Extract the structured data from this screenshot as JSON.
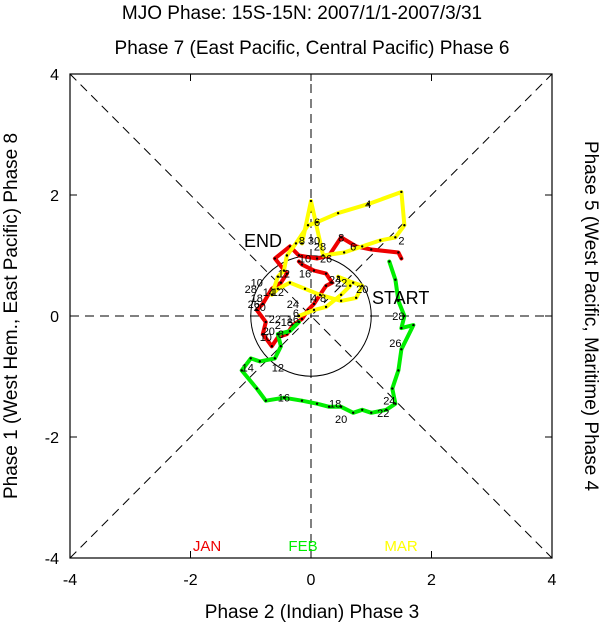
{
  "chart_data": {
    "type": "line",
    "title": "MJO Phase: 15S-15N: 2007/1/1-2007/3/31",
    "top_label": "Phase 7 (East Pacific, Central Pacific) Phase 6",
    "xlabel": "Phase 2 (Indian) Phase 3",
    "left_label": "Phase 1 (West Hem., East Pacific) Phase 8",
    "right_label": "Phase 5 (West Pacific, Maritime) Phase 4",
    "xlim": [
      -4,
      4
    ],
    "ylim": [
      -4,
      4
    ],
    "x_ticks": [
      -4,
      -2,
      0,
      2,
      4
    ],
    "y_ticks": [
      -4,
      -2,
      0,
      2,
      4
    ],
    "x_tick_labels": [
      "-4",
      "-2",
      "0",
      "2",
      "4"
    ],
    "y_tick_labels": [
      "-4",
      "-2",
      "0",
      "2",
      "4"
    ],
    "annotations": {
      "start": "START",
      "end": "END"
    },
    "unit_circle_radius": 1,
    "series": [
      {
        "name": "JAN",
        "color": "#ee0000",
        "points": [
          [
            1.5,
            0.95
          ],
          [
            1.45,
            1.05
          ],
          [
            1.0,
            1.1
          ],
          [
            0.75,
            1.15
          ],
          [
            0.5,
            1.3
          ],
          [
            0.3,
            1.0
          ],
          [
            0.1,
            0.95
          ],
          [
            -0.2,
            1.0
          ],
          [
            -0.35,
            1.15
          ],
          [
            -0.6,
            0.95
          ],
          [
            -0.4,
            0.7
          ],
          [
            -0.5,
            0.55
          ],
          [
            -0.65,
            0.45
          ],
          [
            -0.8,
            0.2
          ],
          [
            -0.9,
            0.1
          ],
          [
            -0.75,
            -0.1
          ],
          [
            -0.8,
            -0.3
          ],
          [
            -0.65,
            -0.5
          ],
          [
            -0.55,
            -0.35
          ],
          [
            -0.4,
            -0.3
          ],
          [
            -0.3,
            -0.15
          ],
          [
            -0.15,
            -0.05
          ],
          [
            -0.05,
            0.1
          ],
          [
            0.05,
            0.2
          ],
          [
            0.15,
            0.35
          ],
          [
            0.25,
            0.5
          ],
          [
            0.35,
            0.55
          ],
          [
            0.25,
            0.7
          ],
          [
            0.05,
            0.75
          ],
          [
            -0.15,
            0.85
          ],
          [
            -0.2,
            0.9
          ]
        ]
      },
      {
        "name": "FEB",
        "color": "#00ee00",
        "points": [
          [
            1.3,
            0.9
          ],
          [
            1.4,
            0.6
          ],
          [
            1.45,
            0.25
          ],
          [
            1.55,
            0.0
          ],
          [
            1.5,
            -0.2
          ],
          [
            1.7,
            -0.15
          ],
          [
            1.5,
            -0.55
          ],
          [
            1.45,
            -0.9
          ],
          [
            1.35,
            -1.2
          ],
          [
            1.4,
            -1.45
          ],
          [
            1.25,
            -1.55
          ],
          [
            1.0,
            -1.6
          ],
          [
            0.85,
            -1.55
          ],
          [
            0.7,
            -1.6
          ],
          [
            0.5,
            -1.5
          ],
          [
            0.3,
            -1.5
          ],
          [
            0.1,
            -1.45
          ],
          [
            -0.15,
            -1.4
          ],
          [
            -0.45,
            -1.35
          ],
          [
            -0.75,
            -1.4
          ],
          [
            -0.9,
            -1.2
          ],
          [
            -1.15,
            -0.9
          ],
          [
            -1.0,
            -0.7
          ],
          [
            -0.85,
            -0.75
          ],
          [
            -0.6,
            -0.7
          ],
          [
            -0.5,
            -0.5
          ],
          [
            -0.55,
            -0.3
          ],
          [
            -0.35,
            -0.25
          ],
          [
            -0.2,
            -0.1
          ]
        ]
      },
      {
        "name": "MAR",
        "color": "#ffff00",
        "points": [
          [
            -0.2,
            0.0
          ],
          [
            0.05,
            0.1
          ],
          [
            0.25,
            0.15
          ],
          [
            0.5,
            0.35
          ],
          [
            0.65,
            0.5
          ],
          [
            0.45,
            0.65
          ],
          [
            0.7,
            0.55
          ],
          [
            0.85,
            0.5
          ],
          [
            0.75,
            0.3
          ],
          [
            0.5,
            0.25
          ],
          [
            0.15,
            0.35
          ],
          [
            -0.1,
            0.45
          ],
          [
            -0.35,
            0.55
          ],
          [
            -0.55,
            0.45
          ],
          [
            -0.65,
            0.35
          ],
          [
            -0.55,
            0.65
          ],
          [
            -0.45,
            0.75
          ],
          [
            -0.4,
            1.0
          ],
          [
            -0.25,
            1.2
          ],
          [
            -0.05,
            1.5
          ],
          [
            0.1,
            1.55
          ],
          [
            0.45,
            1.7
          ],
          [
            0.95,
            1.85
          ],
          [
            1.5,
            2.05
          ],
          [
            1.55,
            1.5
          ],
          [
            1.4,
            1.3
          ],
          [
            1.15,
            1.25
          ],
          [
            0.85,
            1.15
          ],
          [
            0.55,
            1.05
          ],
          [
            0.2,
            1.0
          ],
          [
            0.0,
            1.9
          ],
          [
            -0.15,
            1.2
          ]
        ]
      }
    ],
    "day_labels": [
      {
        "text": "2",
        "x": 1.5,
        "y": 1.25
      },
      {
        "text": "4",
        "x": 0.95,
        "y": 1.85
      },
      {
        "text": "6",
        "x": 0.1,
        "y": 1.55
      },
      {
        "text": "8",
        "x": -0.15,
        "y": 1.25
      },
      {
        "text": "30",
        "x": 0.05,
        "y": 1.25
      },
      {
        "text": "8",
        "x": 0.5,
        "y": 1.3
      },
      {
        "text": "6",
        "x": 0.7,
        "y": 1.15
      },
      {
        "text": "28",
        "x": 0.15,
        "y": 1.15
      },
      {
        "text": "26",
        "x": 0.25,
        "y": 0.95
      },
      {
        "text": "10",
        "x": -0.1,
        "y": 0.95
      },
      {
        "text": "12",
        "x": -0.45,
        "y": 0.7
      },
      {
        "text": "16",
        "x": -0.1,
        "y": 0.7
      },
      {
        "text": "24",
        "x": 0.4,
        "y": 0.6
      },
      {
        "text": "22",
        "x": 0.5,
        "y": 0.55
      },
      {
        "text": "20",
        "x": 0.85,
        "y": 0.45
      },
      {
        "text": "10",
        "x": -0.9,
        "y": 0.55
      },
      {
        "text": "14",
        "x": -0.7,
        "y": 0.4
      },
      {
        "text": "12",
        "x": -0.55,
        "y": 0.4
      },
      {
        "text": "28",
        "x": -1.0,
        "y": 0.45
      },
      {
        "text": "18",
        "x": -0.9,
        "y": 0.3
      },
      {
        "text": "26",
        "x": -0.95,
        "y": 0.2
      },
      {
        "text": "20",
        "x": -0.85,
        "y": 0.15
      },
      {
        "text": "24",
        "x": -0.3,
        "y": 0.2
      },
      {
        "text": "4",
        "x": 0.05,
        "y": 0.3
      },
      {
        "text": "8",
        "x": 0.2,
        "y": 0.3
      },
      {
        "text": "6",
        "x": -0.25,
        "y": 0.05
      },
      {
        "text": "16",
        "x": -0.3,
        "y": -0.05
      },
      {
        "text": "22",
        "x": -0.6,
        "y": -0.05
      },
      {
        "text": "18",
        "x": -0.4,
        "y": -0.1
      },
      {
        "text": "20",
        "x": -0.7,
        "y": -0.25
      },
      {
        "text": "2",
        "x": -0.55,
        "y": -0.15
      },
      {
        "text": "10",
        "x": -0.75,
        "y": -0.35
      },
      {
        "text": "8",
        "x": -0.5,
        "y": -0.3
      },
      {
        "text": "28",
        "x": 1.45,
        "y": 0.0
      },
      {
        "text": "26",
        "x": 1.4,
        "y": -0.45
      },
      {
        "text": "12",
        "x": -0.55,
        "y": -0.85
      },
      {
        "text": "14",
        "x": -1.05,
        "y": -0.85
      },
      {
        "text": "16",
        "x": -0.45,
        "y": -1.35
      },
      {
        "text": "18",
        "x": 0.4,
        "y": -1.45
      },
      {
        "text": "20",
        "x": 0.5,
        "y": -1.7
      },
      {
        "text": "22",
        "x": 1.2,
        "y": -1.6
      },
      {
        "text": "24",
        "x": 1.3,
        "y": -1.4
      }
    ]
  }
}
